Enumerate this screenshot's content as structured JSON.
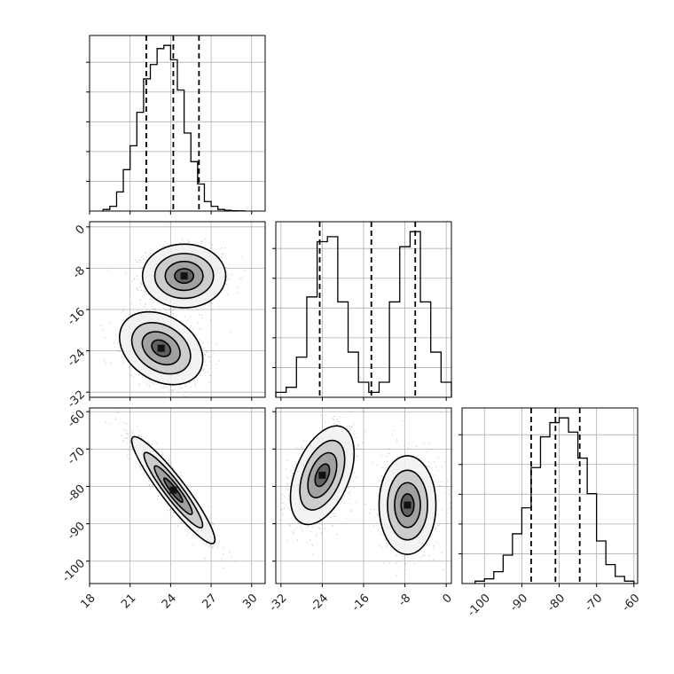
{
  "chart_data": {
    "type": "corner",
    "grid": true,
    "colors": {
      "line": "#000000",
      "grid": "#b0b0b0",
      "points": "#7a7a7a"
    },
    "params": [
      {
        "range": [
          18,
          31
        ],
        "ticks": [
          18,
          21,
          24,
          27,
          30
        ],
        "quantiles": [
          22.2,
          24.2,
          26.1
        ]
      },
      {
        "range": [
          -33,
          1
        ],
        "ticks": [
          0,
          -8,
          -16,
          -24,
          -32
        ],
        "quantiles": [
          -24.5,
          -14.5,
          -6.0
        ]
      },
      {
        "range": [
          -106,
          -59
        ],
        "ticks": [
          -60,
          -70,
          -80,
          -90,
          -100
        ],
        "quantiles": [
          -87.5,
          -81.0,
          -74.5
        ]
      }
    ],
    "histograms": [
      {
        "param": 0,
        "bin_edges": [
          19,
          19.5,
          20,
          20.5,
          21,
          21.5,
          22,
          22.5,
          23,
          23.5,
          24,
          24.5,
          25,
          25.5,
          26,
          26.5,
          27,
          27.5,
          28,
          28.5,
          29,
          29.5
        ],
        "counts": [
          1,
          3,
          12,
          26,
          41,
          62,
          83,
          92,
          102,
          104,
          95,
          76,
          49,
          31,
          17,
          6,
          3,
          1,
          0.5,
          0.2,
          0.1
        ]
      },
      {
        "param": 1,
        "bin_edges": [
          -33,
          -31,
          -29,
          -27,
          -25,
          -23,
          -21,
          -19,
          -17,
          -15,
          -13,
          -11,
          -9,
          -7,
          -5,
          -3,
          -1,
          1
        ],
        "counts": [
          1,
          2,
          8,
          20,
          31,
          32,
          19,
          9,
          3,
          1,
          3,
          19,
          30,
          33,
          19,
          9,
          3
        ]
      },
      {
        "param": 2,
        "bin_edges": [
          -102.5,
          -100,
          -97.5,
          -95,
          -92.5,
          -90,
          -87.5,
          -85,
          -82.5,
          -80,
          -77.5,
          -75,
          -72.5,
          -70,
          -67.5,
          -65,
          -62.5,
          -60
        ],
        "counts": [
          1,
          2,
          5,
          12,
          21,
          32,
          49,
          62,
          68,
          70,
          64,
          53,
          38,
          18,
          8,
          3,
          1
        ]
      }
    ],
    "scatter_panels": [
      {
        "x": 0,
        "y": 1,
        "clusters": [
          {
            "center": [
              25,
              -9.5
            ],
            "sx": 1.4,
            "sy": 2.8,
            "rho": 0.0
          },
          {
            "center": [
              23.3,
              -23.5
            ],
            "sx": 1.4,
            "sy": 3.2,
            "rho": -0.3
          }
        ]
      },
      {
        "x": 0,
        "y": 2,
        "clusters": [
          {
            "center": [
              24.2,
              -81
            ],
            "sx": 1.4,
            "sy": 6.5,
            "rho": -0.93
          }
        ]
      },
      {
        "x": 1,
        "y": 2,
        "clusters": [
          {
            "center": [
              -24,
              -77
            ],
            "sx": 2.8,
            "sy": 6.0,
            "rho": 0.45
          },
          {
            "center": [
              -7.5,
              -85
            ],
            "sx": 2.5,
            "sy": 6.0,
            "rho": 0.0
          }
        ]
      }
    ]
  }
}
